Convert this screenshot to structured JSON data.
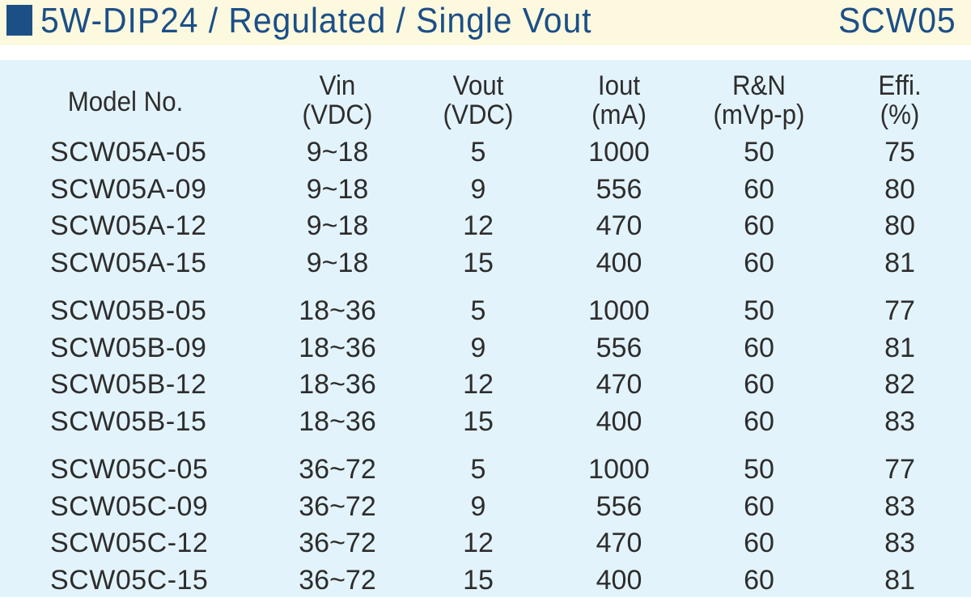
{
  "header": {
    "title": "5W-DIP24 / Regulated / Single Vout",
    "model": "SCW05"
  },
  "columns": [
    {
      "line1": "Model No.",
      "line2": ""
    },
    {
      "line1": "Vin",
      "line2": "(VDC)"
    },
    {
      "line1": "Vout",
      "line2": "(VDC)"
    },
    {
      "line1": "Iout",
      "line2": "(mA)"
    },
    {
      "line1": "R&N",
      "line2": "(mVp-p)"
    },
    {
      "line1": "Effi.",
      "line2": "(%)"
    }
  ],
  "groups": [
    {
      "rows": [
        [
          "SCW05A-05",
          "9~18",
          "5",
          "1000",
          "50",
          "75"
        ],
        [
          "SCW05A-09",
          "9~18",
          "9",
          "556",
          "60",
          "80"
        ],
        [
          "SCW05A-12",
          "9~18",
          "12",
          "470",
          "60",
          "80"
        ],
        [
          "SCW05A-15",
          "9~18",
          "15",
          "400",
          "60",
          "81"
        ]
      ]
    },
    {
      "rows": [
        [
          "SCW05B-05",
          "18~36",
          "5",
          "1000",
          "50",
          "77"
        ],
        [
          "SCW05B-09",
          "18~36",
          "9",
          "556",
          "60",
          "81"
        ],
        [
          "SCW05B-12",
          "18~36",
          "12",
          "470",
          "60",
          "82"
        ],
        [
          "SCW05B-15",
          "18~36",
          "15",
          "400",
          "60",
          "83"
        ]
      ]
    },
    {
      "rows": [
        [
          "SCW05C-05",
          "36~72",
          "5",
          "1000",
          "50",
          "77"
        ],
        [
          "SCW05C-09",
          "36~72",
          "9",
          "556",
          "60",
          "83"
        ],
        [
          "SCW05C-12",
          "36~72",
          "12",
          "470",
          "60",
          "83"
        ],
        [
          "SCW05C-15",
          "36~72",
          "15",
          "400",
          "60",
          "81"
        ]
      ]
    }
  ],
  "colors": {
    "header_bg": "#fdf9df",
    "accent": "#1c4f86",
    "panel_bg": "#e3f3fb",
    "text": "#2d2d2d"
  }
}
